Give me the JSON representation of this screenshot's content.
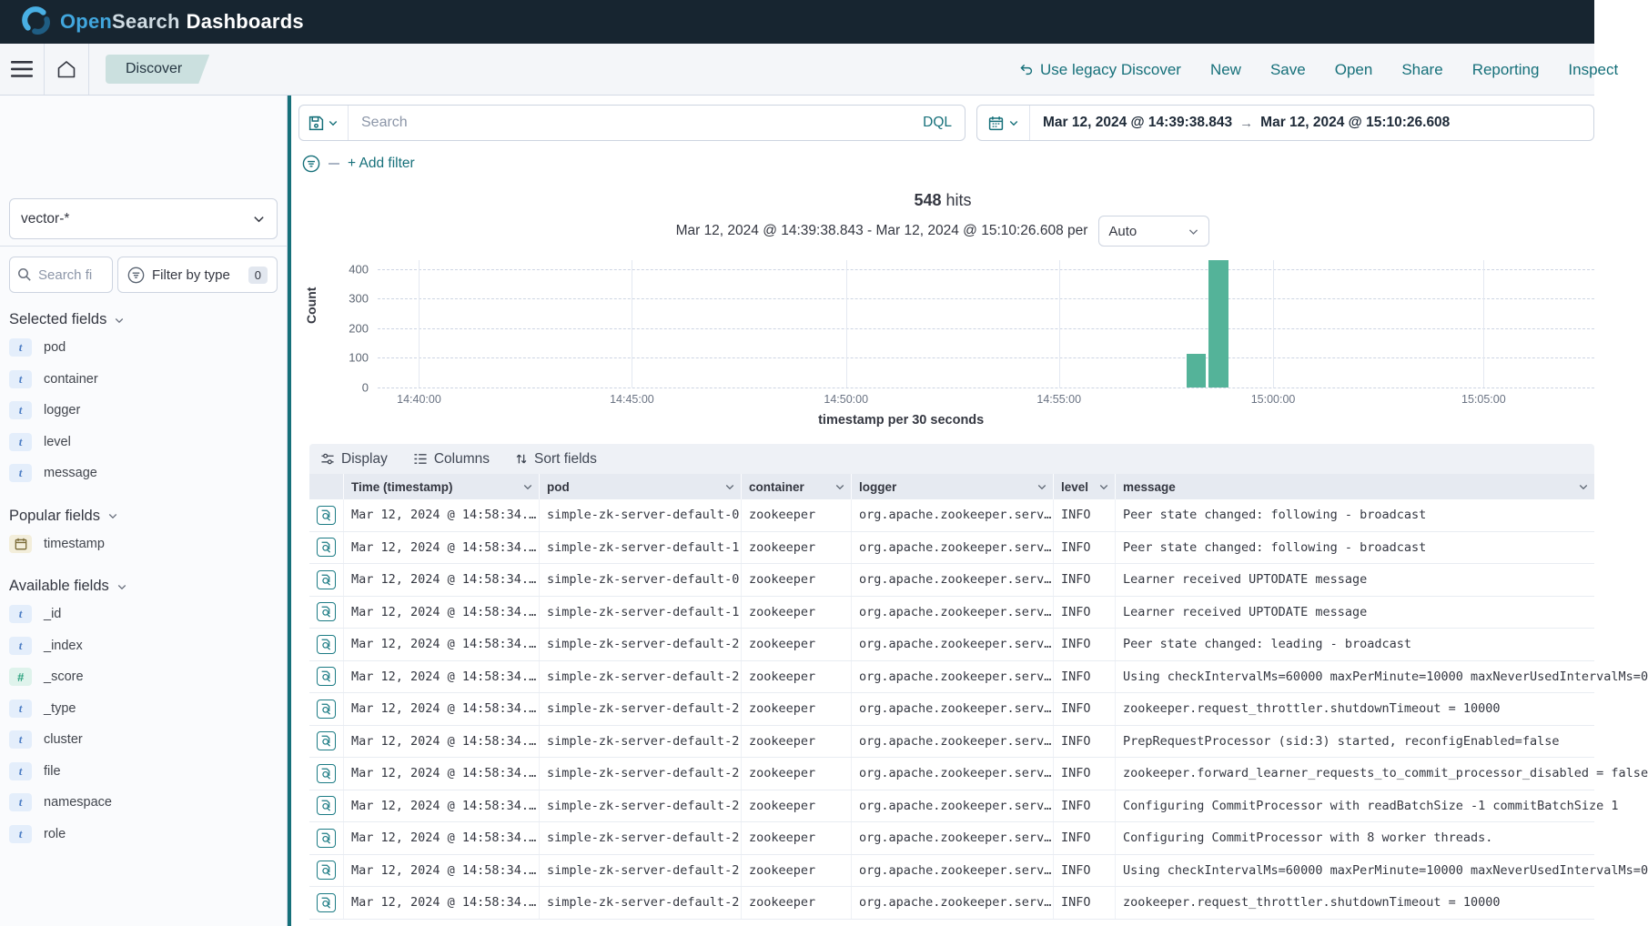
{
  "topbar": {
    "brand": {
      "open": "Open",
      "search": "Search",
      "dashboards": "Dashboards"
    }
  },
  "navbar": {
    "breadcrumb": "Discover",
    "actions": [
      {
        "label": "Use legacy Discover",
        "icon": "undo-icon"
      },
      {
        "label": "New"
      },
      {
        "label": "Save"
      },
      {
        "label": "Open"
      },
      {
        "label": "Share"
      },
      {
        "label": "Reporting"
      },
      {
        "label": "Inspect"
      }
    ]
  },
  "query_bar": {
    "search_placeholder": "Search",
    "language_button": "DQL",
    "date_from": "Mar 12, 2024 @ 14:39:38.843",
    "date_arrow": "→",
    "date_to": "Mar 12, 2024 @ 15:10:26.608",
    "add_filter_label": "+ Add filter"
  },
  "sidebar": {
    "index_pattern": "vector-*",
    "field_search_placeholder": "Search fi",
    "filter_by_type_label": "Filter by type",
    "filter_count": "0",
    "sections": [
      {
        "title": "Selected fields",
        "fields": [
          {
            "name": "pod",
            "type": "string"
          },
          {
            "name": "container",
            "type": "string"
          },
          {
            "name": "logger",
            "type": "string"
          },
          {
            "name": "level",
            "type": "string"
          },
          {
            "name": "message",
            "type": "string"
          }
        ]
      },
      {
        "title": "Popular fields",
        "fields": [
          {
            "name": "timestamp",
            "type": "date"
          }
        ]
      },
      {
        "title": "Available fields",
        "fields": [
          {
            "name": "_id",
            "type": "string"
          },
          {
            "name": "_index",
            "type": "string"
          },
          {
            "name": "_score",
            "type": "number"
          },
          {
            "name": "_type",
            "type": "string"
          },
          {
            "name": "cluster",
            "type": "string"
          },
          {
            "name": "file",
            "type": "string"
          },
          {
            "name": "namespace",
            "type": "string"
          },
          {
            "name": "role",
            "type": "string"
          }
        ]
      }
    ]
  },
  "hits_header": {
    "count": "548",
    "label": "hits",
    "subtitle": "Mar 12, 2024 @ 14:39:38.843 - Mar 12, 2024 @ 15:10:26.608 per",
    "interval_value": "Auto"
  },
  "chart_data": {
    "type": "bar",
    "title": "548 hits",
    "xlabel": "timestamp per 30 seconds",
    "ylabel": "Count",
    "x_tick_labels": [
      "14:40:00",
      "14:45:00",
      "14:50:00",
      "14:55:00",
      "15:00:00",
      "15:05:00"
    ],
    "y_ticks": [
      0,
      100,
      200,
      300,
      400
    ],
    "ylim": [
      0,
      430
    ],
    "time_range": "Mar 12, 2024 @ 14:39:38.843 - Mar 12, 2024 @ 15:10:26.608",
    "interval": "30 seconds",
    "buckets": [
      {
        "time": "14:58:00",
        "count": 113
      },
      {
        "time": "14:58:30",
        "count": 435
      }
    ],
    "bar_color": "#54b399",
    "grid": true,
    "legend_position": "none",
    "layout": {
      "x_tick_pct": [
        3.4,
        20.9,
        38.5,
        56.0,
        73.6,
        90.9
      ],
      "bars_pct": [
        {
          "left": 66.5,
          "width": 1.6
        },
        {
          "left": 68.3,
          "width": 1.6
        }
      ],
      "xlabel_center_pct": 46.8
    }
  },
  "table": {
    "toolbar": [
      {
        "label": "Display",
        "icon": "sliders-icon"
      },
      {
        "label": "Columns",
        "icon": "list-icon"
      },
      {
        "label": "Sort fields",
        "icon": "sort-icon"
      }
    ],
    "columns": [
      "Time (timestamp)",
      "pod",
      "container",
      "logger",
      "level",
      "message"
    ],
    "truncated_time": "Mar 12, 2024 @ 14:58:34.…",
    "truncated_logger": "org.apache.zookeeper.serv…",
    "rows": [
      {
        "time": "Mar 12, 2024 @ 14:58:34.…",
        "pod": "simple-zk-server-default-0",
        "container": "zookeeper",
        "logger": "org.apache.zookeeper.serv…",
        "level": "INFO",
        "message": "Peer state changed: following - broadcast"
      },
      {
        "time": "Mar 12, 2024 @ 14:58:34.…",
        "pod": "simple-zk-server-default-1",
        "container": "zookeeper",
        "logger": "org.apache.zookeeper.serv…",
        "level": "INFO",
        "message": "Peer state changed: following - broadcast"
      },
      {
        "time": "Mar 12, 2024 @ 14:58:34.…",
        "pod": "simple-zk-server-default-0",
        "container": "zookeeper",
        "logger": "org.apache.zookeeper.serv…",
        "level": "INFO",
        "message": "Learner received UPTODATE message"
      },
      {
        "time": "Mar 12, 2024 @ 14:58:34.…",
        "pod": "simple-zk-server-default-1",
        "container": "zookeeper",
        "logger": "org.apache.zookeeper.serv…",
        "level": "INFO",
        "message": "Learner received UPTODATE message"
      },
      {
        "time": "Mar 12, 2024 @ 14:58:34.…",
        "pod": "simple-zk-server-default-2",
        "container": "zookeeper",
        "logger": "org.apache.zookeeper.serv…",
        "level": "INFO",
        "message": "Peer state changed: leading - broadcast"
      },
      {
        "time": "Mar 12, 2024 @ 14:58:34.…",
        "pod": "simple-zk-server-default-2",
        "container": "zookeeper",
        "logger": "org.apache.zookeeper.serv…",
        "level": "INFO",
        "message": "Using checkIntervalMs=60000 maxPerMinute=10000 maxNeverUsedIntervalMs=0"
      },
      {
        "time": "Mar 12, 2024 @ 14:58:34.…",
        "pod": "simple-zk-server-default-2",
        "container": "zookeeper",
        "logger": "org.apache.zookeeper.serv…",
        "level": "INFO",
        "message": "zookeeper.request_throttler.shutdownTimeout = 10000"
      },
      {
        "time": "Mar 12, 2024 @ 14:58:34.…",
        "pod": "simple-zk-server-default-2",
        "container": "zookeeper",
        "logger": "org.apache.zookeeper.serv…",
        "level": "INFO",
        "message": "PrepRequestProcessor (sid:3) started, reconfigEnabled=false"
      },
      {
        "time": "Mar 12, 2024 @ 14:58:34.…",
        "pod": "simple-zk-server-default-2",
        "container": "zookeeper",
        "logger": "org.apache.zookeeper.serv…",
        "level": "INFO",
        "message": "zookeeper.forward_learner_requests_to_commit_processor_disabled = false"
      },
      {
        "time": "Mar 12, 2024 @ 14:58:34.…",
        "pod": "simple-zk-server-default-2",
        "container": "zookeeper",
        "logger": "org.apache.zookeeper.serv…",
        "level": "INFO",
        "message": "Configuring CommitProcessor with readBatchSize -1 commitBatchSize 1"
      },
      {
        "time": "Mar 12, 2024 @ 14:58:34.…",
        "pod": "simple-zk-server-default-2",
        "container": "zookeeper",
        "logger": "org.apache.zookeeper.serv…",
        "level": "INFO",
        "message": "Configuring CommitProcessor with 8 worker threads."
      },
      {
        "time": "Mar 12, 2024 @ 14:58:34.…",
        "pod": "simple-zk-server-default-2",
        "container": "zookeeper",
        "logger": "org.apache.zookeeper.serv…",
        "level": "INFO",
        "message": "Using checkIntervalMs=60000 maxPerMinute=10000 maxNeverUsedIntervalMs=0"
      },
      {
        "time": "Mar 12, 2024 @ 14:58:34.…",
        "pod": "simple-zk-server-default-2",
        "container": "zookeeper",
        "logger": "org.apache.zookeeper.serv…",
        "level": "INFO",
        "message": "zookeeper.request_throttler.shutdownTimeout = 10000"
      }
    ]
  },
  "colors": {
    "accent_teal": "#16707a",
    "bar_green": "#54b399",
    "topbar_bg": "#172530",
    "badge_string_text": "#4a7cc4",
    "badge_number_text": "#2da37f"
  }
}
